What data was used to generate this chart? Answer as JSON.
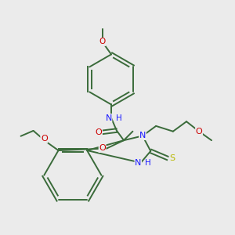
{
  "bg_color": "#ebebeb",
  "bond_color": "#3a6b3a",
  "atom_colors": {
    "O": "#cc0000",
    "N": "#1a1aff",
    "S": "#b8b800",
    "C": "#3a6b3a"
  },
  "lw": 1.4
}
